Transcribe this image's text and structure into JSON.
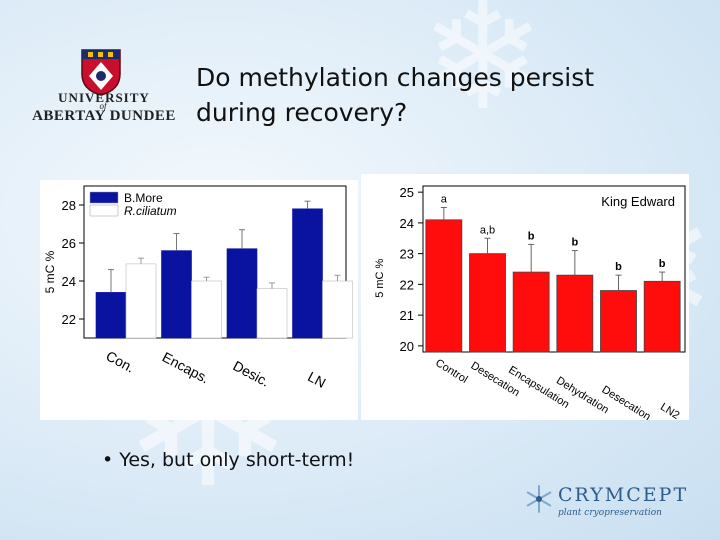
{
  "slide": {
    "title_line1": "Do methylation changes persist",
    "title_line2": "during recovery?",
    "bullet": "• Yes, but only short-term!"
  },
  "logo_left": {
    "line1": "UNIVERSITY",
    "line2": "of",
    "line3": "ABERTAY DUNDEE"
  },
  "logo_right": {
    "name": "CRYMCEPT",
    "tagline": "plant cryopreservation",
    "accent": "#2d5c8c"
  },
  "chart_data": [
    {
      "type": "bar",
      "categories": [
        "Con.",
        "Encaps.",
        "Desic.",
        "LN"
      ],
      "series": [
        {
          "name": "B.More",
          "color": "#0a12a0",
          "values": [
            23.4,
            25.6,
            25.7,
            27.8
          ],
          "errors": [
            1.2,
            0.9,
            1.0,
            0.4
          ]
        },
        {
          "name": "R.ciliatum",
          "color": "#ffffff",
          "values": [
            24.9,
            24.0,
            23.6,
            24.0
          ],
          "errors": [
            0.3,
            0.2,
            0.3,
            0.3
          ]
        }
      ],
      "ylim": [
        21,
        29
      ],
      "yticks": [
        22,
        24,
        26,
        28
      ],
      "ylabel": "5 mC %",
      "legend": "top-left"
    },
    {
      "type": "bar",
      "title": "King Edward",
      "categories": [
        "Control",
        "Desecation",
        "Encapsulation",
        "Dehydration",
        "Desecation",
        "LN2"
      ],
      "series": [
        {
          "name": "King Edward",
          "color": "#ff0d0d",
          "values": [
            24.1,
            23.0,
            22.4,
            22.3,
            21.8,
            22.1
          ],
          "errors": [
            0.4,
            0.5,
            0.9,
            0.8,
            0.5,
            0.3
          ]
        }
      ],
      "significance": [
        "a",
        "a,b",
        "b",
        "b",
        "b",
        "b"
      ],
      "ylim": [
        19.8,
        25.2
      ],
      "yticks": [
        20,
        21,
        22,
        23,
        24,
        25
      ],
      "ylabel": "5 mC %"
    }
  ]
}
